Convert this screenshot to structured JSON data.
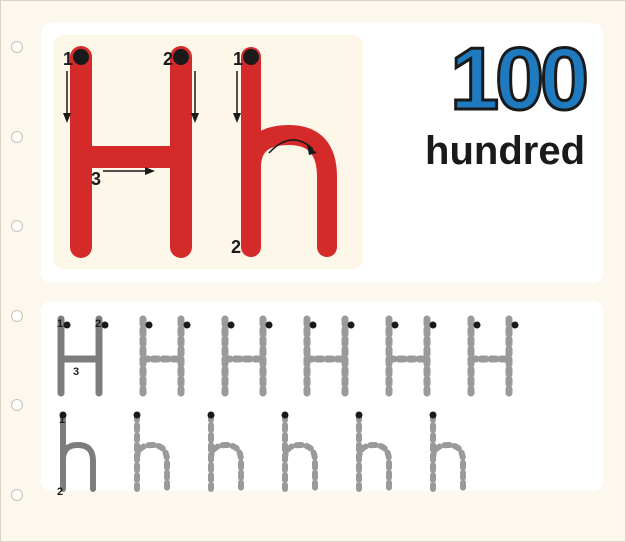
{
  "page": {
    "background_color": "#fcf8ed",
    "hole_color": "#ffffff",
    "content_bg": "#fcf8ed"
  },
  "upper_panel": {
    "background_color": "#ffffff",
    "letter_box_bg": "#fcf7e9",
    "letter_color": "#d52a2a",
    "guide_color": "#1a1a1a",
    "stroke_labels_upper": [
      "1",
      "2",
      "3"
    ],
    "stroke_labels_lower": [
      "1",
      "2"
    ]
  },
  "word": {
    "number_text": "100",
    "number_color": "#1f7abf",
    "label_text": "hundred",
    "label_color": "#1a1a1a",
    "label_fontsize": 40,
    "number_fontsize": 88
  },
  "tracing": {
    "background_color": "#ffffff",
    "solid_color": "#7d7d7d",
    "dashed_color": "#9a9a9a",
    "guide_color": "#1a1a1a",
    "upper_count": 6,
    "lower_count": 6
  }
}
